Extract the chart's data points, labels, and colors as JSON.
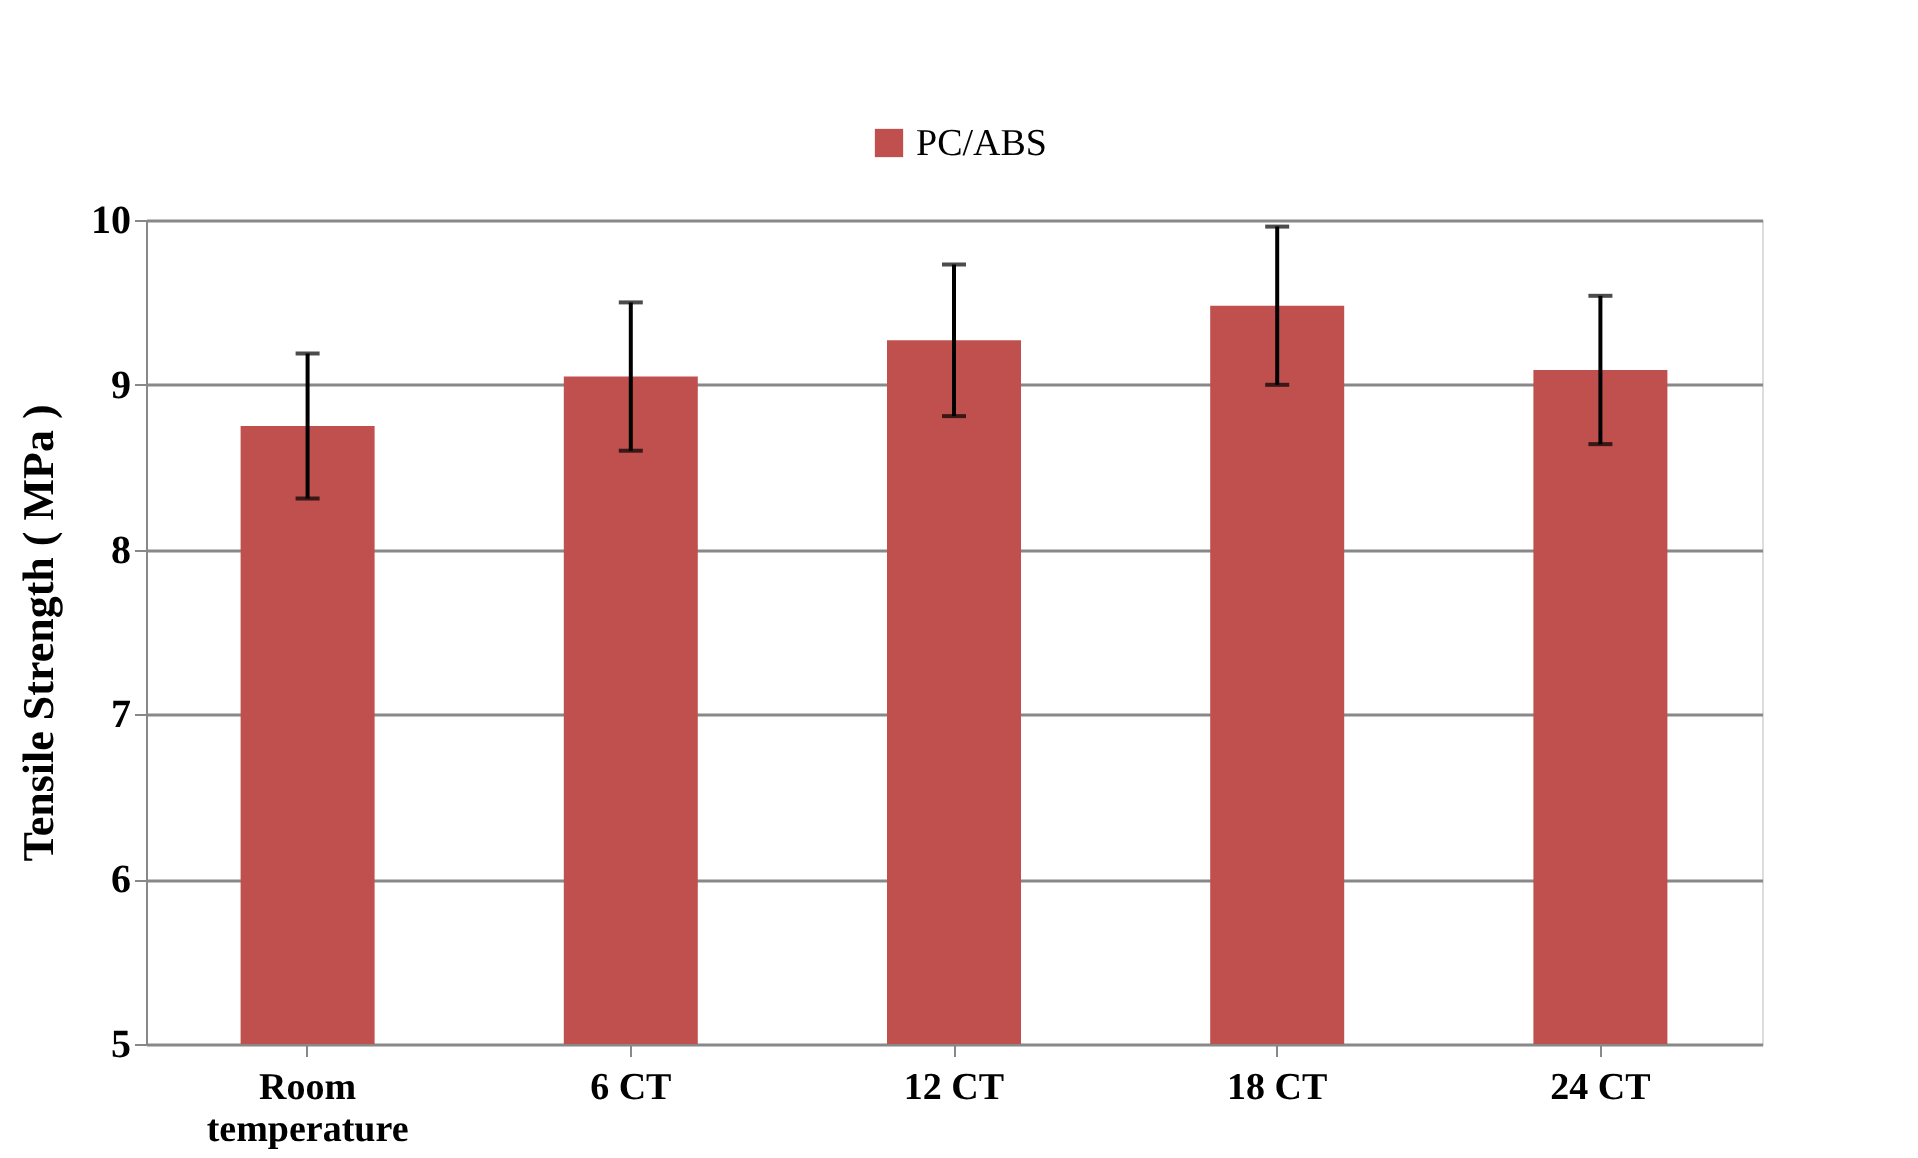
{
  "chart_data": {
    "type": "bar",
    "ylabel": "Tensile Strength ( MPa )",
    "categories": [
      "Room temperature",
      "6 CT",
      "12 CT",
      "18 CT",
      "24 CT"
    ],
    "series": [
      {
        "name": "PC/ABS",
        "color": "#c0504d",
        "values": [
          8.75,
          9.05,
          9.27,
          9.48,
          9.09
        ],
        "errors": [
          0.44,
          0.45,
          0.46,
          0.48,
          0.45
        ]
      }
    ],
    "ylim": [
      5,
      10
    ],
    "yticks": [
      5,
      6,
      7,
      8,
      9,
      10
    ],
    "grid": "y",
    "legend": "top"
  }
}
